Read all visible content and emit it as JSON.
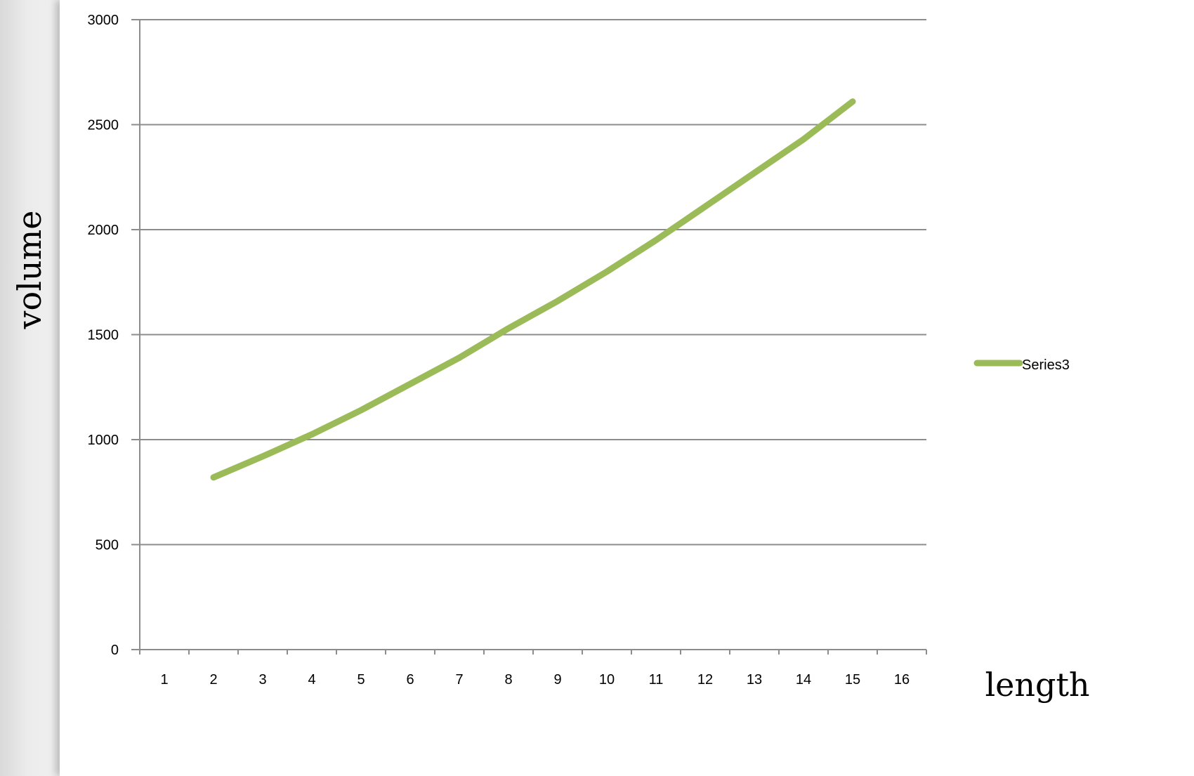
{
  "chart_data": {
    "type": "line",
    "x": [
      2,
      3,
      4,
      5,
      6,
      7,
      8,
      9,
      10,
      11,
      12,
      13,
      14,
      15
    ],
    "series": [
      {
        "name": "Series3",
        "color": "#9bbb59",
        "values": [
          820,
          920,
          1025,
          1140,
          1265,
          1390,
          1530,
          1660,
          1800,
          1950,
          2110,
          2270,
          2430,
          2610
        ]
      }
    ],
    "categories": [
      "1",
      "2",
      "3",
      "4",
      "5",
      "6",
      "7",
      "8",
      "9",
      "10",
      "11",
      "12",
      "13",
      "14",
      "15",
      "16"
    ],
    "yticks": [
      0,
      500,
      1000,
      1500,
      2000,
      2500,
      3000
    ],
    "ylim": [
      0,
      3000
    ],
    "xlabel": "length",
    "ylabel": "volume",
    "grid": true,
    "legend_position": "right"
  }
}
